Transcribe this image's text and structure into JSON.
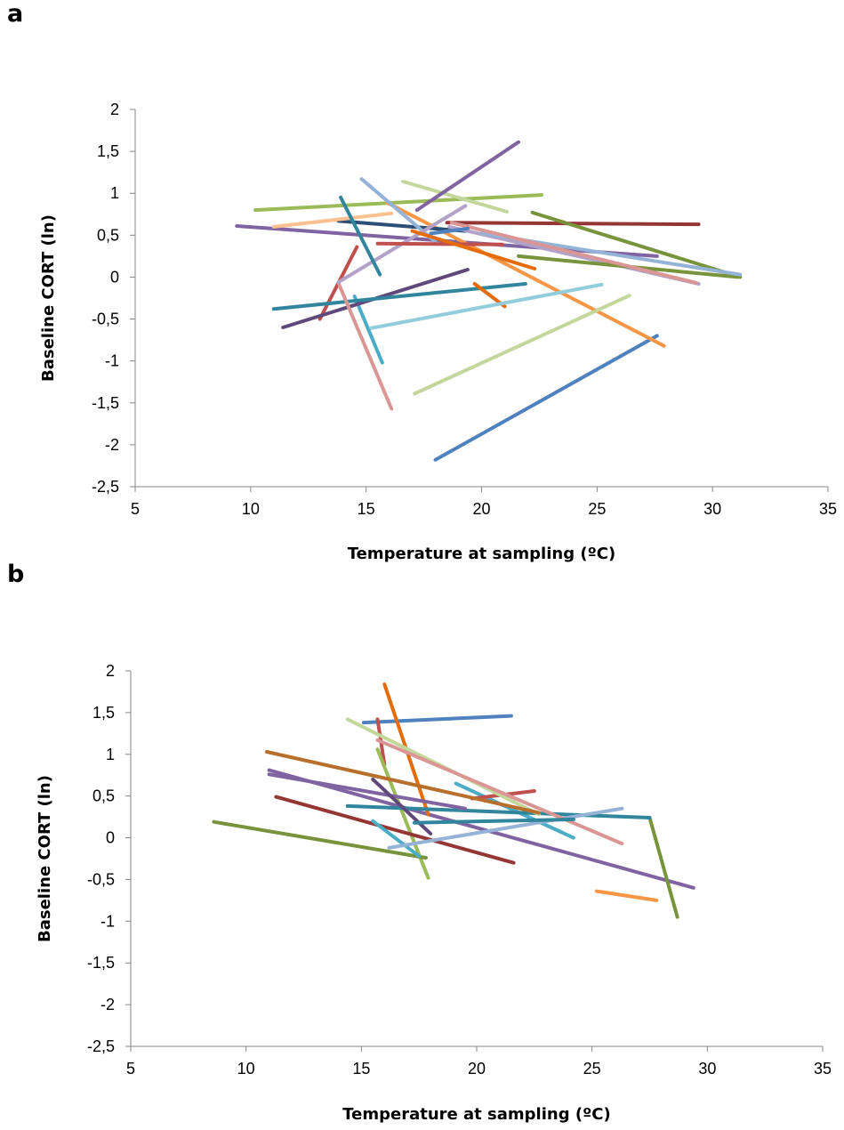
{
  "panels": [
    "a",
    "b"
  ],
  "chart_data": [
    {
      "type": "line",
      "panel": "a",
      "xlabel": "Temperature at sampling (ºC)",
      "ylabel": "Baseline CORT (ln)",
      "xlim": [
        5,
        35
      ],
      "ylim": [
        -2.5,
        2
      ],
      "xticks": [
        5,
        10,
        15,
        20,
        25,
        30,
        35
      ],
      "yticks": [
        2,
        1.5,
        1,
        0.5,
        0,
        -0.5,
        -1,
        -1.5,
        -2,
        -2.5
      ],
      "ytick_labels": [
        "2",
        "1,5",
        "1",
        "0,5",
        "0",
        "-0,5",
        "-1",
        "-1,5",
        "-2",
        "-2,5"
      ],
      "grid": false,
      "legend": "none",
      "series": [
        {
          "color": "#4e81bd",
          "x": [
            18.0,
            27.6
          ],
          "y": [
            -2.18,
            -0.7
          ]
        },
        {
          "color": "#c0504d",
          "x": [
            13.0,
            14.6
          ],
          "y": [
            -0.5,
            0.36
          ]
        },
        {
          "color": "#9bbb59",
          "x": [
            10.2,
            22.6
          ],
          "y": [
            0.8,
            0.98
          ]
        },
        {
          "color": "#8064a2",
          "x": [
            9.4,
            27.6
          ],
          "y": [
            0.61,
            0.25
          ]
        },
        {
          "color": "#4bacc6",
          "x": [
            14.5,
            15.7
          ],
          "y": [
            -0.23,
            -1.02
          ]
        },
        {
          "color": "#f79646",
          "x": [
            15.9,
            27.9
          ],
          "y": [
            0.89,
            -0.82
          ]
        },
        {
          "color": "#2c4d75",
          "x": [
            13.8,
            19.3
          ],
          "y": [
            0.67,
            0.55
          ]
        },
        {
          "color": "#943634",
          "x": [
            18.5,
            29.4
          ],
          "y": [
            0.65,
            0.63
          ]
        },
        {
          "color": "#77933c",
          "x": [
            22.2,
            31.2
          ],
          "y": [
            0.77,
            0.0
          ]
        },
        {
          "color": "#5f497a",
          "x": [
            11.4,
            19.4
          ],
          "y": [
            -0.6,
            0.09
          ]
        },
        {
          "color": "#31859c",
          "x": [
            11.0,
            21.9
          ],
          "y": [
            -0.38,
            -0.08
          ]
        },
        {
          "color": "#e46c0a",
          "x": [
            19.7,
            21.0
          ],
          "y": [
            -0.08,
            -0.35
          ]
        },
        {
          "color": "#95b3d7",
          "x": [
            14.8,
            18.0
          ],
          "y": [
            1.17,
            0.42
          ]
        },
        {
          "color": "#d99694",
          "x": [
            13.8,
            16.1
          ],
          "y": [
            -0.07,
            -1.57
          ]
        },
        {
          "color": "#c3d69b",
          "x": [
            17.1,
            26.4
          ],
          "y": [
            -1.39,
            -0.22
          ]
        },
        {
          "color": "#b2a2c7",
          "x": [
            13.8,
            19.3
          ],
          "y": [
            -0.06,
            0.85
          ]
        },
        {
          "color": "#92cddc",
          "x": [
            15.2,
            25.2
          ],
          "y": [
            -0.61,
            -0.09
          ]
        },
        {
          "color": "#fac08f",
          "x": [
            11.0,
            16.1
          ],
          "y": [
            0.6,
            0.76
          ]
        },
        {
          "color": "#b2a2c7",
          "x": [
            18.6,
            29.4
          ],
          "y": [
            0.6,
            -0.08
          ]
        },
        {
          "color": "#c3d69b",
          "x": [
            16.6,
            21.1
          ],
          "y": [
            1.14,
            0.78
          ]
        },
        {
          "color": "#8064a2",
          "x": [
            17.2,
            21.6
          ],
          "y": [
            0.8,
            1.61
          ]
        },
        {
          "color": "#31859c",
          "x": [
            13.9,
            15.6
          ],
          "y": [
            0.95,
            0.03
          ]
        },
        {
          "color": "#c0504d",
          "x": [
            15.5,
            20.9
          ],
          "y": [
            0.4,
            0.39
          ]
        },
        {
          "color": "#77933c",
          "x": [
            21.6,
            31.1
          ],
          "y": [
            0.25,
            0.0
          ]
        },
        {
          "color": "#95b3d7",
          "x": [
            20.0,
            31.2
          ],
          "y": [
            0.52,
            0.03
          ]
        },
        {
          "color": "#d99694",
          "x": [
            18.7,
            29.3
          ],
          "y": [
            0.65,
            -0.07
          ]
        },
        {
          "color": "#e46c0a",
          "x": [
            17.0,
            22.3
          ],
          "y": [
            0.55,
            0.1
          ]
        },
        {
          "color": "#4e81bd",
          "x": [
            17.8,
            19.4
          ],
          "y": [
            0.52,
            0.58
          ]
        }
      ]
    },
    {
      "type": "line",
      "panel": "b",
      "xlabel": "Temperature at sampling (ºC)",
      "ylabel": "Baseline CORT (ln)",
      "xlim": [
        5,
        35
      ],
      "ylim": [
        -2.5,
        2
      ],
      "xticks": [
        5,
        10,
        15,
        20,
        25,
        30,
        35
      ],
      "yticks": [
        2,
        1.5,
        1,
        0.5,
        0,
        -0.5,
        -1,
        -1.5,
        -2,
        -2.5
      ],
      "ytick_labels": [
        "2",
        "1,5",
        "1",
        "0,5",
        "0",
        "-0,5",
        "-1",
        "-1,5",
        "-2",
        "-2,5"
      ],
      "grid": false,
      "legend": "none",
      "series": [
        {
          "color": "#4e81bd",
          "x": [
            15.1,
            21.5
          ],
          "y": [
            1.38,
            1.46
          ]
        },
        {
          "color": "#c0504d",
          "x": [
            15.7,
            16.0
          ],
          "y": [
            1.42,
            0.88
          ]
        },
        {
          "color": "#9bbb59",
          "x": [
            15.7,
            17.9
          ],
          "y": [
            1.06,
            -0.48
          ]
        },
        {
          "color": "#8064a2",
          "x": [
            11.0,
            29.4
          ],
          "y": [
            0.81,
            -0.6
          ]
        },
        {
          "color": "#4bacc6",
          "x": [
            19.1,
            24.2
          ],
          "y": [
            0.65,
            0.0
          ]
        },
        {
          "color": "#f79646",
          "x": [
            25.2,
            27.8
          ],
          "y": [
            -0.64,
            -0.75
          ]
        },
        {
          "color": "#943634",
          "x": [
            11.3,
            21.6
          ],
          "y": [
            0.49,
            -0.3
          ]
        },
        {
          "color": "#77933c",
          "x": [
            8.6,
            17.8
          ],
          "y": [
            0.19,
            -0.24
          ]
        },
        {
          "color": "#77933c",
          "x": [
            27.5,
            28.7
          ],
          "y": [
            0.24,
            -0.95
          ]
        },
        {
          "color": "#e46c0a",
          "x": [
            16.0,
            17.9
          ],
          "y": [
            1.84,
            0.28
          ]
        },
        {
          "color": "#31859c",
          "x": [
            14.4,
            27.5
          ],
          "y": [
            0.38,
            0.24
          ]
        },
        {
          "color": "#c0504d",
          "x": [
            19.8,
            22.5
          ],
          "y": [
            0.47,
            0.56
          ]
        },
        {
          "color": "#4bacc6",
          "x": [
            15.5,
            17.5
          ],
          "y": [
            0.2,
            -0.22
          ]
        },
        {
          "color": "#c3d69b",
          "x": [
            14.4,
            22.7
          ],
          "y": [
            1.42,
            0.28
          ]
        },
        {
          "color": "#95b3d7",
          "x": [
            16.2,
            26.3
          ],
          "y": [
            -0.12,
            0.35
          ]
        },
        {
          "color": "#d99694",
          "x": [
            15.7,
            26.3
          ],
          "y": [
            1.17,
            -0.07
          ]
        },
        {
          "color": "#b76f2b",
          "x": [
            10.9,
            22.7
          ],
          "y": [
            1.03,
            0.3
          ]
        },
        {
          "color": "#8064a2",
          "x": [
            11.0,
            19.5
          ],
          "y": [
            0.76,
            0.35
          ]
        },
        {
          "color": "#5f497a",
          "x": [
            15.5,
            18.0
          ],
          "y": [
            0.7,
            0.05
          ]
        },
        {
          "color": "#31859c",
          "x": [
            17.3,
            24.2
          ],
          "y": [
            0.18,
            0.22
          ]
        }
      ]
    }
  ]
}
